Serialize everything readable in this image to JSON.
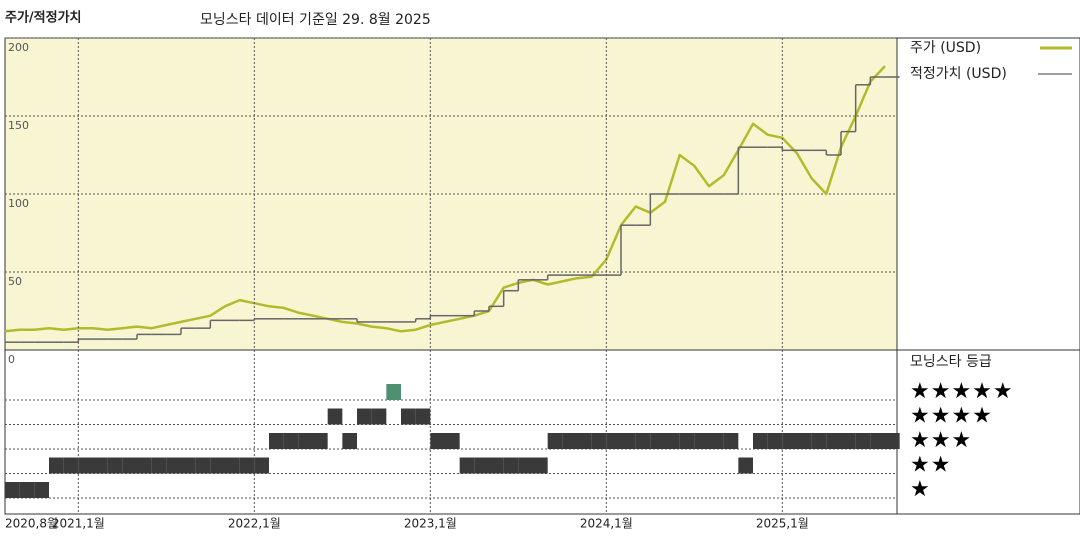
{
  "chart_data": [
    {
      "type": "line",
      "title": "주가/적정가치",
      "subtitle": "모닝스타 데이터 기준일 29. 8월 2025",
      "x": [
        "2020-08",
        "2020-09",
        "2020-10",
        "2020-11",
        "2020-12",
        "2021-01",
        "2021-02",
        "2021-03",
        "2021-04",
        "2021-05",
        "2021-06",
        "2021-07",
        "2021-08",
        "2021-09",
        "2021-10",
        "2021-11",
        "2021-12",
        "2022-01",
        "2022-02",
        "2022-03",
        "2022-04",
        "2022-05",
        "2022-06",
        "2022-07",
        "2022-08",
        "2022-09",
        "2022-10",
        "2022-11",
        "2022-12",
        "2023-01",
        "2023-02",
        "2023-03",
        "2023-04",
        "2023-05",
        "2023-06",
        "2023-07",
        "2023-08",
        "2023-09",
        "2023-10",
        "2023-11",
        "2023-12",
        "2024-01",
        "2024-02",
        "2024-03",
        "2024-04",
        "2024-05",
        "2024-06",
        "2024-07",
        "2024-08",
        "2024-09",
        "2024-10",
        "2024-11",
        "2024-12",
        "2025-01",
        "2025-02",
        "2025-03",
        "2025-04",
        "2025-05",
        "2025-06",
        "2025-07",
        "2025-08"
      ],
      "series": [
        {
          "name": "주가 (USD)",
          "color": "#b3bb2c",
          "values": [
            12,
            13,
            13,
            14,
            13,
            14,
            14,
            13,
            14,
            15,
            14,
            16,
            18,
            20,
            22,
            28,
            32,
            30,
            28,
            27,
            24,
            22,
            20,
            18,
            17,
            15,
            14,
            12,
            13,
            16,
            18,
            20,
            22,
            25,
            40,
            43,
            45,
            42,
            44,
            46,
            47,
            58,
            80,
            92,
            88,
            95,
            125,
            118,
            105,
            112,
            128,
            145,
            138,
            136,
            126,
            110,
            100,
            130,
            150,
            172,
            182
          ]
        },
        {
          "name": "적정가치 (USD)",
          "color": "#666666",
          "step": true,
          "values": [
            5,
            5,
            5,
            5,
            5,
            7,
            7,
            7,
            7,
            10,
            10,
            10,
            14,
            14,
            19,
            19,
            19,
            20,
            20,
            20,
            20,
            20,
            20,
            20,
            18,
            18,
            18,
            18,
            20,
            22,
            22,
            22,
            25,
            28,
            38,
            45,
            45,
            48,
            48,
            48,
            48,
            48,
            80,
            80,
            100,
            100,
            100,
            100,
            100,
            100,
            130,
            130,
            130,
            128,
            128,
            128,
            125,
            140,
            170,
            175,
            175
          ]
        }
      ],
      "ylim": [
        0,
        200
      ],
      "yticks": [
        0,
        50,
        100,
        150,
        200
      ],
      "grid": true
    },
    {
      "type": "rating",
      "title": "모닝스타 등급",
      "x": [
        "2020-08",
        "2020-09",
        "2020-10",
        "2020-11",
        "2020-12",
        "2021-01",
        "2021-02",
        "2021-03",
        "2021-04",
        "2021-05",
        "2021-06",
        "2021-07",
        "2021-08",
        "2021-09",
        "2021-10",
        "2021-11",
        "2021-12",
        "2022-01",
        "2022-02",
        "2022-03",
        "2022-04",
        "2022-05",
        "2022-06",
        "2022-07",
        "2022-08",
        "2022-09",
        "2022-10",
        "2022-11",
        "2022-12",
        "2023-01",
        "2023-02",
        "2023-03",
        "2023-04",
        "2023-05",
        "2023-06",
        "2023-07",
        "2023-08",
        "2023-09",
        "2023-10",
        "2023-11",
        "2023-12",
        "2024-01",
        "2024-02",
        "2024-03",
        "2024-04",
        "2024-05",
        "2024-06",
        "2024-07",
        "2024-08",
        "2024-09",
        "2024-10",
        "2024-11",
        "2024-12",
        "2025-01",
        "2025-02",
        "2025-03",
        "2025-04",
        "2025-05",
        "2025-06",
        "2025-07",
        "2025-08"
      ],
      "values": [
        1,
        1,
        1,
        2,
        2,
        2,
        2,
        2,
        2,
        2,
        2,
        2,
        2,
        2,
        2,
        2,
        2,
        2,
        3,
        3,
        3,
        3,
        4,
        3,
        4,
        4,
        5,
        4,
        4,
        3,
        3,
        2,
        2,
        2,
        2,
        2,
        2,
        3,
        3,
        3,
        3,
        3,
        3,
        3,
        3,
        3,
        3,
        3,
        3,
        3,
        2,
        3,
        3,
        3,
        3,
        3,
        3,
        3,
        3,
        3,
        3
      ],
      "levels": [
        {
          "value": 5,
          "label": "★★★★★"
        },
        {
          "value": 4,
          "label": "★★★★"
        },
        {
          "value": 3,
          "label": "★★★"
        },
        {
          "value": 2,
          "label": "★★"
        },
        {
          "value": 1,
          "label": "★"
        }
      ],
      "color": "#3a3a3a",
      "top_color": "#4f8f72",
      "xticks": [
        {
          "value": "2020-08",
          "label": "2020,8월"
        },
        {
          "value": "2021-01",
          "label": "2021,1월"
        },
        {
          "value": "2022-01",
          "label": "2022,1월"
        },
        {
          "value": "2023-01",
          "label": "2023,1월"
        },
        {
          "value": "2024-01",
          "label": "2024,1월"
        },
        {
          "value": "2025-01",
          "label": "2025,1월"
        }
      ]
    }
  ]
}
